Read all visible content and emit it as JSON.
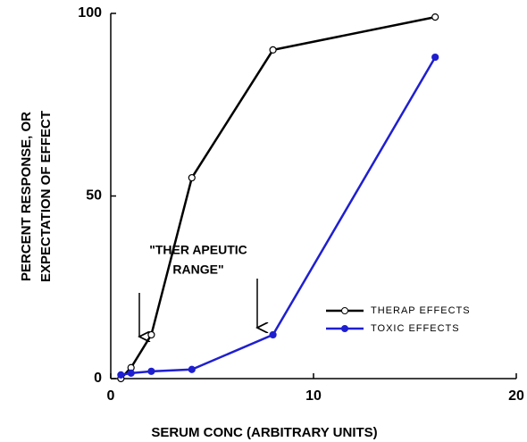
{
  "chart_data": {
    "type": "line",
    "title_lines": null,
    "x_label": "SERUM CONC (ARBITRARY UNITS)",
    "y_label_lines": [
      "PERCENT RESPONSE, OR",
      "EXPECTATION OF EFFECT"
    ],
    "annotation_lines": [
      "\"THER APEUTIC",
      "RANGE\""
    ],
    "xlim": [
      0,
      20
    ],
    "xticks": [
      0,
      10,
      20
    ],
    "ylim": [
      0,
      100
    ],
    "yticks": [
      0,
      50,
      100
    ],
    "legend": "lower right",
    "series": [
      {
        "name": "THERAP EFFECTS",
        "color": "#000000",
        "marker": "open",
        "x": [
          0.5,
          1,
          2,
          4,
          8,
          16
        ],
        "values": [
          0,
          3,
          12,
          55,
          90,
          99
        ]
      },
      {
        "name": "TOXIC EFFECTS",
        "color": "#1f1fd0",
        "marker": "filled",
        "x": [
          0.5,
          1,
          2,
          4,
          8,
          16
        ],
        "values": [
          1,
          1.5,
          2,
          2.5,
          12,
          88
        ]
      }
    ]
  }
}
